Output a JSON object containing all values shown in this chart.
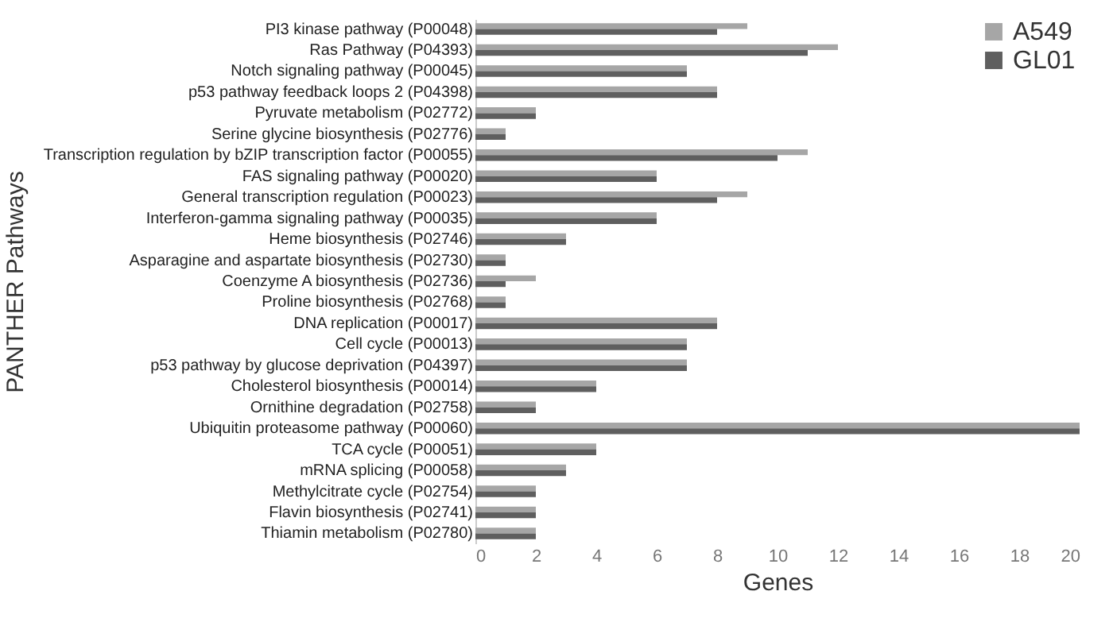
{
  "chart_data": {
    "type": "bar",
    "orientation": "horizontal",
    "xlabel": "Genes",
    "ylabel": "PANTHER Pathways",
    "categories": [
      "PI3 kinase pathway (P00048)",
      "Ras Pathway (P04393)",
      "Notch signaling pathway (P00045)",
      "p53 pathway feedback loops 2 (P04398)",
      "Pyruvate metabolism (P02772)",
      "Serine glycine biosynthesis (P02776)",
      "Transcription regulation by bZIP transcription factor (P00055)",
      "FAS signaling pathway (P00020)",
      "General transcription regulation (P00023)",
      "Interferon-gamma signaling pathway (P00035)",
      "Heme biosynthesis (P02746)",
      "Asparagine and aspartate biosynthesis (P02730)",
      "Coenzyme A biosynthesis (P02736)",
      "Proline biosynthesis (P02768)",
      "DNA replication (P00017)",
      "Cell cycle (P00013)",
      "p53 pathway by glucose deprivation (P04397)",
      "Cholesterol biosynthesis (P00014)",
      "Ornithine degradation (P02758)",
      "Ubiquitin proteasome pathway (P00060)",
      "TCA cycle (P00051)",
      "mRNA splicing (P00058)",
      "Methylcitrate cycle (P02754)",
      "Flavin biosynthesis (P02741)",
      "Thiamin metabolism (P02780)"
    ],
    "series": [
      {
        "name": "A549",
        "color": "#a6a6a6",
        "values": [
          9,
          12,
          7,
          8,
          2,
          1,
          11,
          6,
          9,
          6,
          3,
          1,
          2,
          1,
          8,
          7,
          7,
          4,
          2,
          20,
          4,
          3,
          2,
          2,
          2
        ]
      },
      {
        "name": "GL01",
        "color": "#5f5f5f",
        "values": [
          8,
          11,
          7,
          8,
          2,
          1,
          10,
          6,
          8,
          6,
          3,
          1,
          1,
          1,
          8,
          7,
          7,
          4,
          2,
          20,
          4,
          3,
          2,
          2,
          2
        ]
      }
    ],
    "xlim": [
      0,
      20
    ],
    "xticks": [
      0,
      2,
      4,
      6,
      8,
      10,
      12,
      14,
      16,
      18,
      20
    ],
    "grid": false,
    "legend": "top right"
  }
}
